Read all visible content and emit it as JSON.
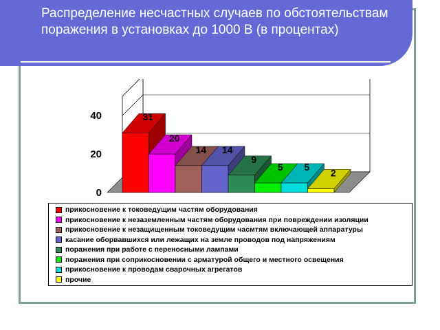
{
  "slide": {
    "title": "Распределение несчастных случаев по обстоятельствам поражения в установках до 1000 В (в процентах)"
  },
  "chart_data": {
    "type": "bar",
    "title": "",
    "xlabel": "",
    "ylabel": "",
    "ylim": [
      0,
      50
    ],
    "yticks": [
      0,
      20,
      40
    ],
    "grid": false,
    "legend_position": "bottom",
    "series": [
      {
        "name": "прикосновение к токоведущим частям оборудования",
        "value": 31,
        "color": "#ff0000"
      },
      {
        "name": "прикосновение к незаземленным частям оборудования при повреждении изоляции",
        "value": 20,
        "color": "#ff00ff"
      },
      {
        "name": "прикосновение к незащищенным токоведущим чаcмтям включающей аппаратуры",
        "value": 14,
        "color": "#a0605c"
      },
      {
        "name": "касание оборвавшихся или лежащих на земле проводов под напряжениям",
        "value": 14,
        "color": "#6464cc"
      },
      {
        "name": "поражения при работе с переносными лампами",
        "value": 9,
        "color": "#2e8b57"
      },
      {
        "name": "поражения при соприкосновении с арматурой общего и местного освещения",
        "value": 5,
        "color": "#00ee00"
      },
      {
        "name": "прикосновение к проводам сварочных агрегатов",
        "value": 5,
        "color": "#00dddd"
      },
      {
        "name": "прочие",
        "value": 2,
        "color": "#ffff00"
      }
    ]
  }
}
